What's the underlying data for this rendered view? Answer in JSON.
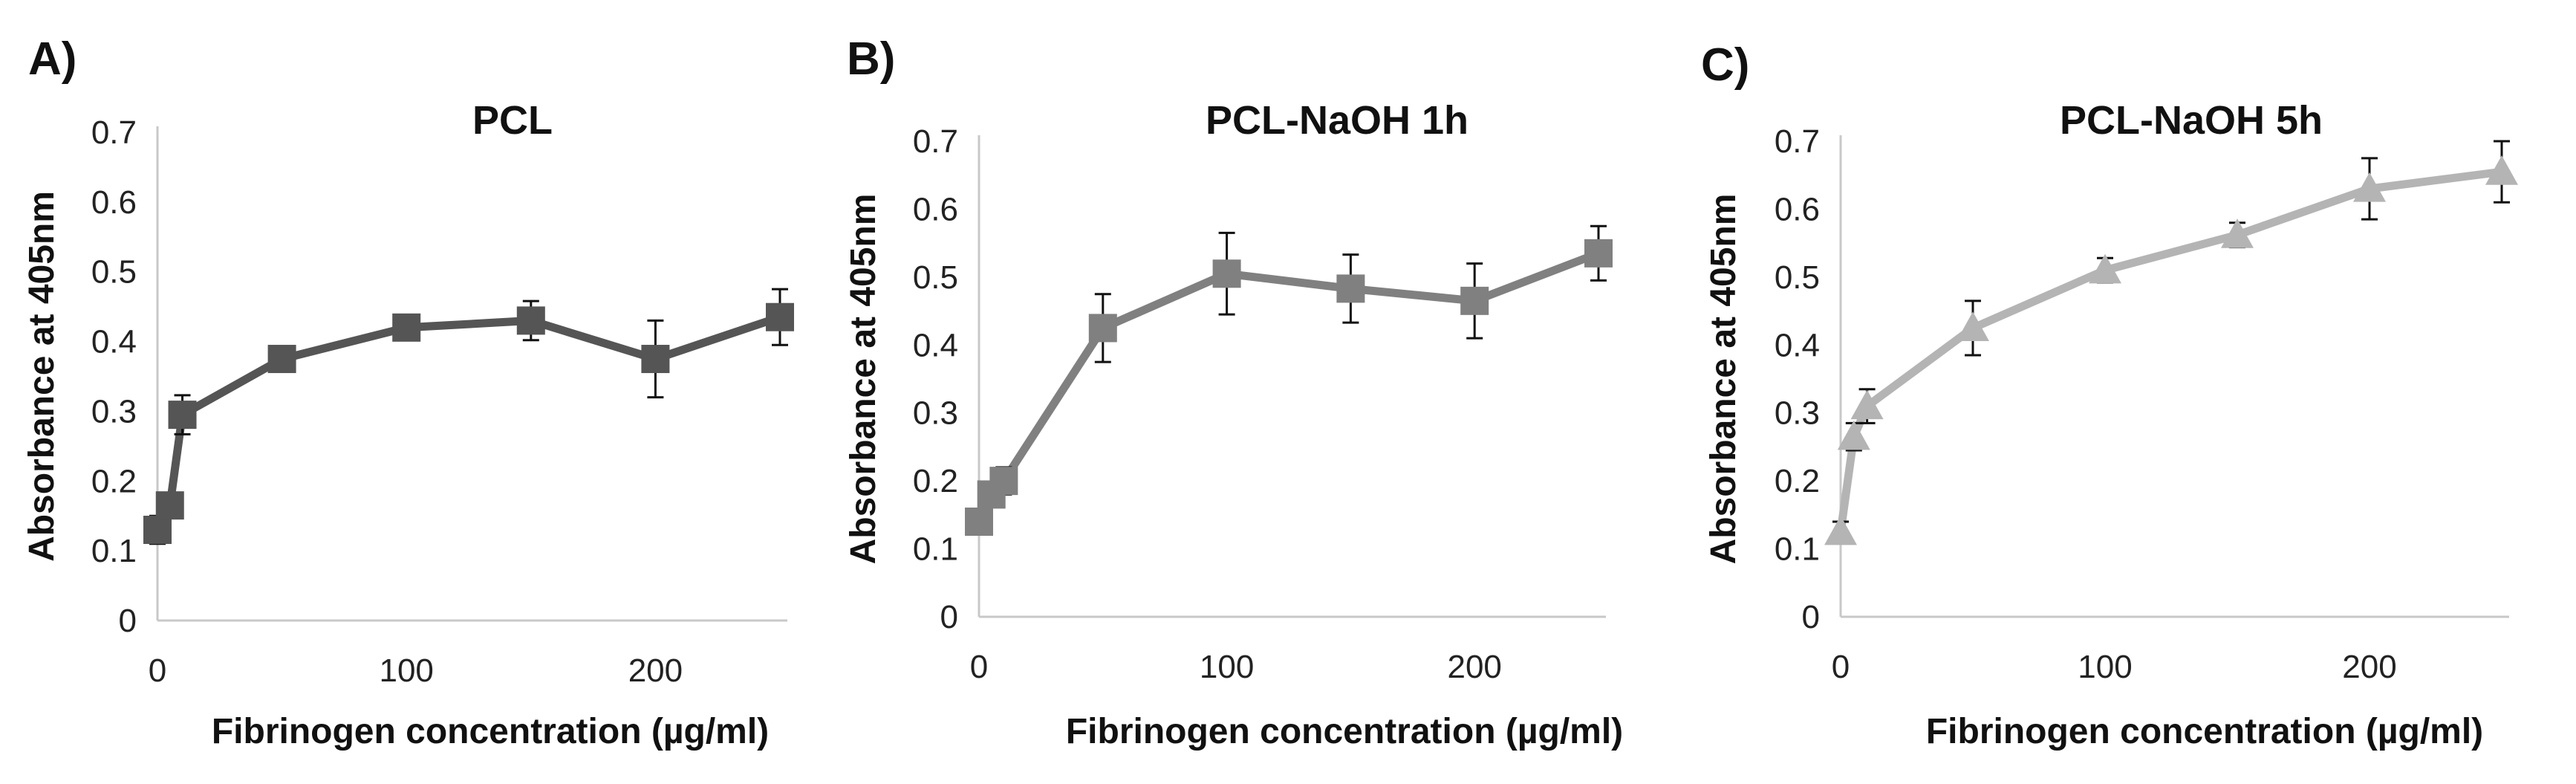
{
  "figure": {
    "panels": [
      "A)",
      "B)",
      "C)"
    ]
  },
  "chart_data": [
    {
      "type": "line",
      "panel": "A)",
      "title": "PCL",
      "xlabel": "Fibrinogen concentration (µg/ml)",
      "ylabel": "Absorbance at 405nm",
      "xlim": [
        0,
        250
      ],
      "ylim": [
        0,
        0.7
      ],
      "xticks": [
        "0",
        "100",
        "200"
      ],
      "yticks": [
        "0",
        "0.1",
        "0.2",
        "0.3",
        "0.4",
        "0.5",
        "0.6",
        "0.7"
      ],
      "marker": "square",
      "color": "#555555",
      "x": [
        0,
        5,
        10,
        50,
        100,
        150,
        200,
        250
      ],
      "y": [
        0.13,
        0.165,
        0.295,
        0.375,
        0.42,
        0.43,
        0.375,
        0.435
      ],
      "err": [
        0.02,
        0.015,
        0.028,
        0.01,
        0.012,
        0.028,
        0.055,
        0.04
      ],
      "grid": false
    },
    {
      "type": "line",
      "panel": "B)",
      "title": "PCL-NaOH 1h",
      "xlabel": "Fibrinogen concentration (µg/ml)",
      "ylabel": "Absorbance at 405nm",
      "xlim": [
        0,
        250
      ],
      "ylim": [
        0,
        0.7
      ],
      "xticks": [
        "0",
        "100",
        "200"
      ],
      "yticks": [
        "0",
        "0.1",
        "0.2",
        "0.3",
        "0.4",
        "0.5",
        "0.6",
        "0.7"
      ],
      "marker": "square",
      "color": "#808080",
      "x": [
        0,
        5,
        10,
        50,
        100,
        150,
        200,
        250
      ],
      "y": [
        0.14,
        0.18,
        0.2,
        0.425,
        0.505,
        0.483,
        0.465,
        0.535
      ],
      "err": [
        0.015,
        0.015,
        0.02,
        0.05,
        0.06,
        0.05,
        0.055,
        0.04
      ],
      "grid": false
    },
    {
      "type": "line",
      "panel": "C)",
      "title": "PCL-NaOH 5h",
      "xlabel": "Fibrinogen concentration (µg/ml)",
      "ylabel": "Absorbance at 405nm",
      "xlim": [
        0,
        250
      ],
      "ylim": [
        0,
        0.7
      ],
      "xticks": [
        "0",
        "100",
        "200"
      ],
      "yticks": [
        "0",
        "0.1",
        "0.2",
        "0.3",
        "0.4",
        "0.5",
        "0.6",
        "0.7"
      ],
      "marker": "triangle",
      "color": "#b4b4b4",
      "x": [
        0,
        5,
        10,
        50,
        100,
        150,
        200,
        250
      ],
      "y": [
        0.125,
        0.265,
        0.31,
        0.425,
        0.51,
        0.562,
        0.63,
        0.655
      ],
      "err": [
        0.015,
        0.02,
        0.025,
        0.04,
        0.018,
        0.018,
        0.045,
        0.045
      ],
      "grid": false
    }
  ]
}
